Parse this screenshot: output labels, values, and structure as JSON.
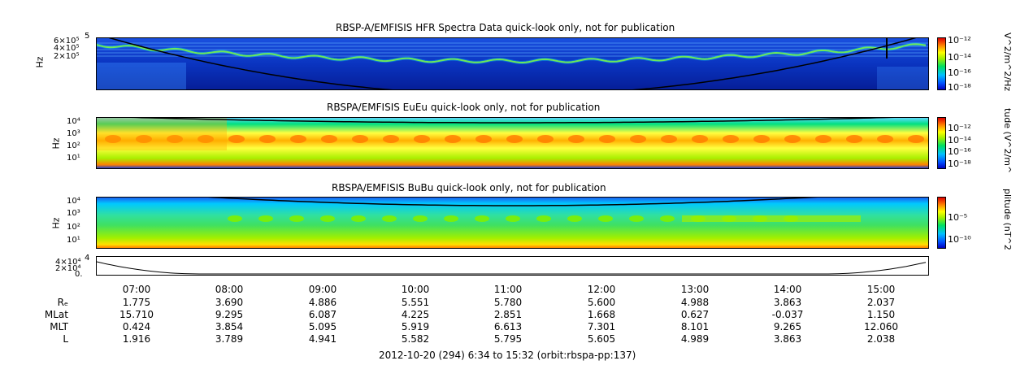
{
  "colors": {
    "panel_bg": "#0a3cc8",
    "trace_color": "#000000"
  },
  "panels": [
    {
      "title": "RBSP-A/EMFISIS  HFR Spectra Data quick-look only, not for publication",
      "ylabel": "Hz",
      "yticks": [
        "6×10⁵",
        "4×10⁵",
        "2×10⁵"
      ],
      "ytick_top": "5",
      "colorbar_label": "V^2/m^2/Hz",
      "colorbar_ticks": [
        "10⁻¹²",
        "10⁻¹⁴",
        "10⁻¹⁶",
        "10⁻¹⁸"
      ]
    },
    {
      "title": "RBSPA/EMFISIS  EuEu quick-look only, not for publication",
      "ylabel": "Hz",
      "yticks": [
        "10⁴",
        "10³",
        "10²",
        "10¹"
      ],
      "colorbar_label": "tude (V^2/m^",
      "colorbar_ticks": [
        "10⁻¹²",
        "10⁻¹⁴",
        "10⁻¹⁶",
        "10⁻¹⁸"
      ]
    },
    {
      "title": "RBSPA/EMFISIS  BuBu quick-look only, not for publication",
      "ylabel": "Hz",
      "yticks": [
        "10⁴",
        "10³",
        "10²",
        "10¹"
      ],
      "colorbar_label": "plitude (nT^2",
      "colorbar_ticks": [
        "10⁻⁵",
        "10⁻¹⁰"
      ]
    },
    {
      "yticks": [
        "4×10⁴",
        "2×10⁴",
        "0."
      ],
      "ytick_top": "4"
    }
  ],
  "chart_data": {
    "type": "heatmap",
    "x_ticks": [
      "07:00",
      "08:00",
      "09:00",
      "10:00",
      "11:00",
      "12:00",
      "13:00",
      "14:00",
      "15:00"
    ],
    "ephemeris": {
      "rows": [
        {
          "label": "Rₑ",
          "values": [
            "1.775",
            "3.690",
            "4.886",
            "5.551",
            "5.780",
            "5.600",
            "4.988",
            "3.863",
            "2.037"
          ]
        },
        {
          "label": "MLat",
          "values": [
            "15.710",
            "9.295",
            "6.087",
            "4.225",
            "2.851",
            "1.668",
            "0.627",
            "-0.037",
            "1.150"
          ]
        },
        {
          "label": "MLT",
          "values": [
            "0.424",
            "3.854",
            "5.095",
            "5.919",
            "6.613",
            "7.301",
            "8.101",
            "9.265",
            "12.060"
          ]
        },
        {
          "label": "L",
          "values": [
            "1.916",
            "3.789",
            "4.941",
            "5.582",
            "5.795",
            "5.605",
            "4.989",
            "3.863",
            "2.038"
          ]
        }
      ]
    }
  },
  "footer": "2012-10-20 (294) 6:34 to 15:32 (orbit:rbspa-pp:137)"
}
